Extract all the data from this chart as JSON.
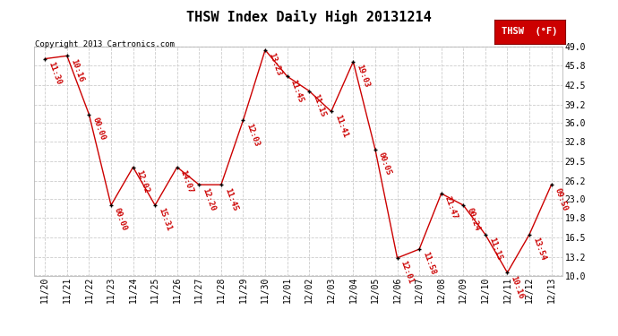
{
  "title": "THSW Index Daily High 20131214",
  "copyright": "Copyright 2013 Cartronics.com",
  "legend_label": "THSW  (°F)",
  "background_color": "#ffffff",
  "plot_bg_color": "#ffffff",
  "grid_color": "#cccccc",
  "line_color": "#cc0000",
  "marker_color": "#000000",
  "label_color": "#cc0000",
  "dates": [
    "11/20",
    "11/21",
    "11/22",
    "11/23",
    "11/24",
    "11/25",
    "11/26",
    "11/27",
    "11/28",
    "11/29",
    "11/30",
    "12/01",
    "12/02",
    "12/03",
    "12/04",
    "12/05",
    "12/06",
    "12/07",
    "12/08",
    "12/09",
    "12/10",
    "12/11",
    "12/12",
    "12/13"
  ],
  "values": [
    47.0,
    47.5,
    37.5,
    22.0,
    28.5,
    22.0,
    28.5,
    25.5,
    25.5,
    36.5,
    48.5,
    44.0,
    41.5,
    38.0,
    46.5,
    31.5,
    13.0,
    14.5,
    24.0,
    22.0,
    17.0,
    10.5,
    17.0,
    25.5
  ],
  "times": [
    "11:30",
    "10:16",
    "00:00",
    "00:00",
    "12:02",
    "15:31",
    "14:07",
    "12:20",
    "11:45",
    "12:03",
    "13:23",
    "11:45",
    "11:15",
    "11:41",
    "19:03",
    "00:05",
    "12:01",
    "11:58",
    "21:47",
    "00:24",
    "11:15",
    "10:16",
    "13:54",
    "09:50"
  ],
  "ylim": [
    10.0,
    49.0
  ],
  "yticks": [
    10.0,
    13.2,
    16.5,
    19.8,
    23.0,
    26.2,
    29.5,
    32.8,
    36.0,
    39.2,
    42.5,
    45.8,
    49.0
  ],
  "title_fontsize": 11,
  "label_fontsize": 6.5,
  "tick_fontsize": 7,
  "copyright_fontsize": 6.5,
  "legend_box_color": "#cc0000",
  "legend_text_color": "#ffffff"
}
